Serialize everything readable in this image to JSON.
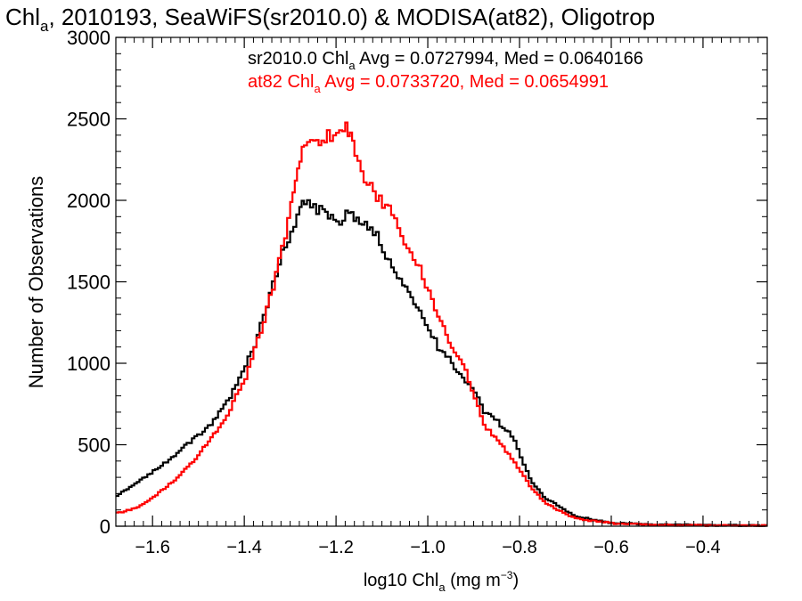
{
  "chart_data": {
    "type": "line",
    "title_main": "Chl",
    "title_sub": "a",
    "title_rest": ", 2010193, SeaWiFS(sr2010.0) & MODISA(at82), Oligotrop",
    "xlabel_main": "log10 Chl",
    "xlabel_sub": "a",
    "xlabel_unit": " (mg m",
    "xlabel_sup": "−3",
    "xlabel_close": ")",
    "ylabel": "Number of Observations",
    "xlim": [
      -1.68,
      -0.26
    ],
    "ylim": [
      0,
      3000
    ],
    "xticks": [
      -1.6,
      -1.4,
      -1.2,
      -1.0,
      -0.8,
      -0.6,
      -0.4
    ],
    "xtick_labels": [
      "−1.6",
      "−1.4",
      "−1.2",
      "−1.0",
      "−0.8",
      "−0.6",
      "−0.4"
    ],
    "yticks": [
      0,
      500,
      1000,
      1500,
      2000,
      2500,
      3000
    ],
    "ytick_labels": [
      "0",
      "500",
      "1000",
      "1500",
      "2000",
      "2500",
      "3000"
    ],
    "series": [
      {
        "name": "sr2010.0",
        "color": "#000000",
        "stats_pre": "sr2010.0 Chl",
        "stats_sub": "a",
        "stats_post": " Avg = 0.0727994, Med = 0.0640166",
        "x": [
          -1.68,
          -1.64,
          -1.6,
          -1.56,
          -1.52,
          -1.48,
          -1.44,
          -1.42,
          -1.4,
          -1.38,
          -1.36,
          -1.34,
          -1.32,
          -1.3,
          -1.28,
          -1.27,
          -1.25,
          -1.23,
          -1.2,
          -1.18,
          -1.15,
          -1.12,
          -1.1,
          -1.08,
          -1.05,
          -1.02,
          -1.0,
          -0.98,
          -0.95,
          -0.92,
          -0.9,
          -0.88,
          -0.85,
          -0.82,
          -0.8,
          -0.78,
          -0.75,
          -0.72,
          -0.7,
          -0.68,
          -0.65,
          -0.62,
          -0.6,
          -0.55,
          -0.5,
          -0.45,
          -0.4,
          -0.35,
          -0.3,
          -0.26
        ],
        "y": [
          190,
          260,
          340,
          420,
          520,
          610,
          760,
          880,
          980,
          1110,
          1300,
          1490,
          1670,
          1800,
          1940,
          1990,
          1940,
          1930,
          1860,
          1900,
          1890,
          1820,
          1700,
          1560,
          1450,
          1320,
          1200,
          1100,
          1000,
          900,
          820,
          700,
          640,
          560,
          430,
          290,
          180,
          130,
          90,
          60,
          45,
          30,
          20,
          15,
          10,
          8,
          6,
          5,
          5,
          5
        ]
      },
      {
        "name": "at82",
        "color": "#ff0000",
        "stats_pre": "at82 Chl",
        "stats_sub": "a",
        "stats_post": " Avg = 0.0733720, Med = 0.0654991",
        "x": [
          -1.68,
          -1.64,
          -1.6,
          -1.56,
          -1.52,
          -1.48,
          -1.44,
          -1.42,
          -1.4,
          -1.38,
          -1.36,
          -1.34,
          -1.32,
          -1.3,
          -1.29,
          -1.28,
          -1.27,
          -1.25,
          -1.22,
          -1.2,
          -1.18,
          -1.17,
          -1.16,
          -1.14,
          -1.12,
          -1.1,
          -1.08,
          -1.06,
          -1.04,
          -1.02,
          -1.0,
          -0.98,
          -0.95,
          -0.92,
          -0.9,
          -0.88,
          -0.85,
          -0.82,
          -0.8,
          -0.78,
          -0.75,
          -0.72,
          -0.7,
          -0.68,
          -0.65,
          -0.62,
          -0.6,
          -0.55,
          -0.5,
          -0.45,
          -0.4,
          -0.35,
          -0.3,
          -0.26
        ],
        "y": [
          80,
          110,
          180,
          270,
          380,
          520,
          680,
          800,
          920,
          1080,
          1260,
          1460,
          1700,
          1960,
          2100,
          2260,
          2350,
          2380,
          2390,
          2420,
          2430,
          2400,
          2250,
          2150,
          2050,
          1990,
          1900,
          1790,
          1680,
          1580,
          1440,
          1290,
          1110,
          960,
          780,
          620,
          520,
          420,
          330,
          250,
          150,
          100,
          70,
          50,
          35,
          25,
          18,
          12,
          8,
          6,
          5,
          5,
          5,
          5
        ]
      }
    ]
  }
}
